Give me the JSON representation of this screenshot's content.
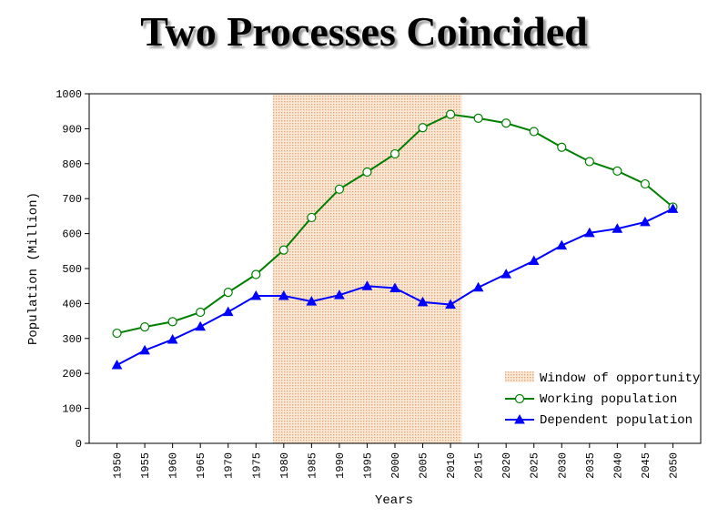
{
  "chart_data": {
    "type": "line",
    "title": "Two Processes Coincided",
    "xlabel": "Years",
    "ylabel": "Population (Million)",
    "ylim": [
      0,
      1000
    ],
    "yticks": [
      "0",
      "100",
      "200",
      "300",
      "400",
      "500",
      "600",
      "700",
      "800",
      "900",
      "1000"
    ],
    "x": [
      1950,
      1955,
      1960,
      1965,
      1970,
      1975,
      1980,
      1985,
      1990,
      1995,
      2000,
      2005,
      2010,
      2015,
      2020,
      2025,
      2030,
      2035,
      2040,
      2045,
      2050
    ],
    "xticks": [
      "1950",
      "1955",
      "1960",
      "1965",
      "1970",
      "1975",
      "1980",
      "1985",
      "1990",
      "1995",
      "2000",
      "2005",
      "2010",
      "2015",
      "2020",
      "2025",
      "2030",
      "2035",
      "2040",
      "2045",
      "2050"
    ],
    "window": {
      "name": "Window of opportunity",
      "x_start": 1978,
      "x_end": 2012,
      "color": "#f2cfb0"
    },
    "series": [
      {
        "name": "Working population",
        "color": "#008000",
        "marker": "circle",
        "values": [
          315,
          333,
          348,
          375,
          432,
          483,
          553,
          646,
          727,
          776,
          828,
          903,
          941,
          930,
          916,
          892,
          847,
          806,
          779,
          742,
          676
        ]
      },
      {
        "name": "Dependent population",
        "color": "#0000ff",
        "marker": "triangle",
        "values": [
          224,
          266,
          297,
          334,
          376,
          422,
          422,
          406,
          424,
          450,
          444,
          404,
          397,
          446,
          484,
          522,
          566,
          602,
          614,
          633,
          671
        ]
      }
    ],
    "grid": false,
    "legend_position": "bottom-right"
  }
}
